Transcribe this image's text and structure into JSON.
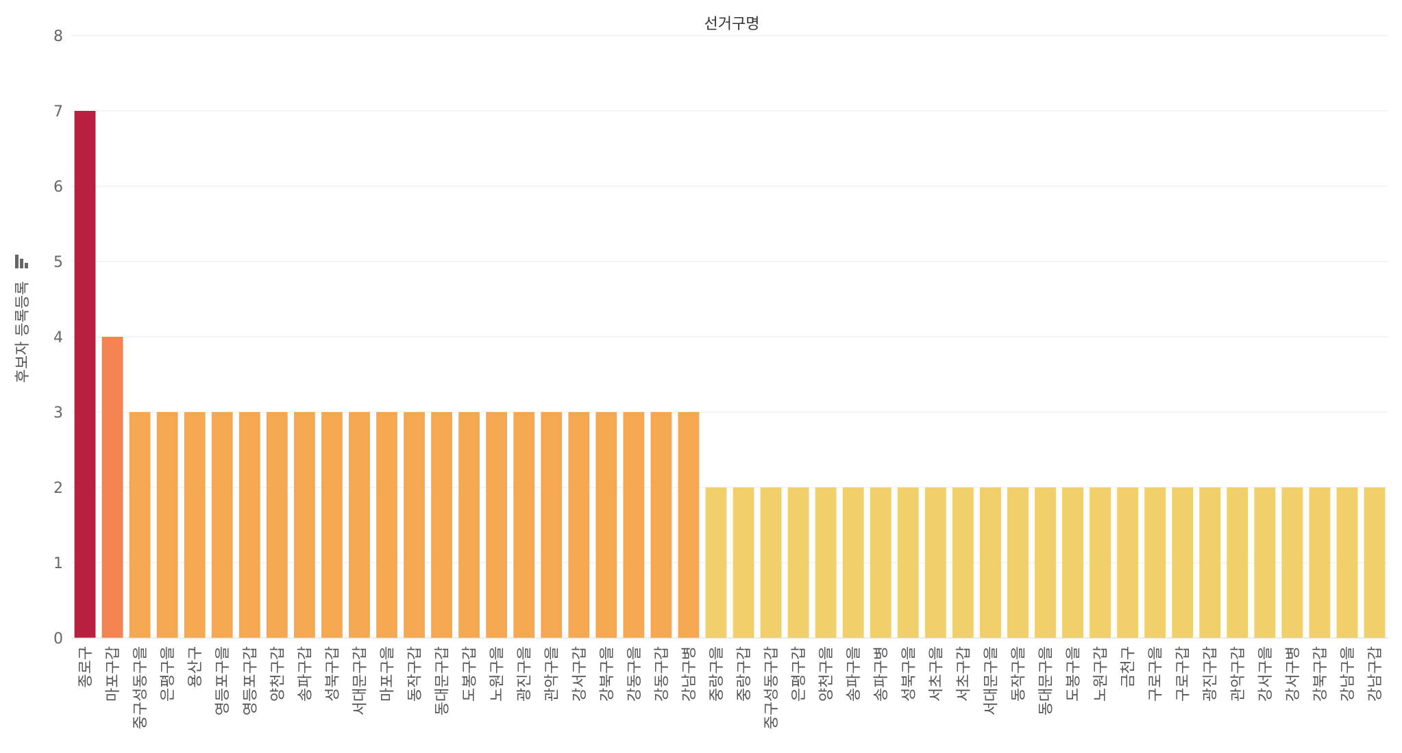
{
  "chart_data": {
    "type": "bar",
    "title": "선거구명",
    "xlabel": "",
    "ylabel": "후보자 등록등록",
    "ylim": [
      0,
      8
    ],
    "yticks": [
      0,
      1,
      2,
      3,
      4,
      5,
      6,
      7,
      8
    ],
    "grid": true,
    "categories": [
      "종로구",
      "마포구갑",
      "중구성동구을",
      "은평구을",
      "용산구",
      "영등포구을",
      "영등포구갑",
      "양천구갑",
      "송파구갑",
      "성북구갑",
      "서대문구갑",
      "마포구을",
      "동작구갑",
      "동대문구갑",
      "도봉구갑",
      "노원구을",
      "광진구을",
      "관악구을",
      "강서구갑",
      "강북구을",
      "강동구을",
      "강동구갑",
      "강남구병",
      "중랑구을",
      "중랑구갑",
      "중구성동구갑",
      "은평구갑",
      "양천구을",
      "송파구을",
      "송파구병",
      "성북구을",
      "서초구을",
      "서초구갑",
      "서대문구을",
      "동작구을",
      "동대문구을",
      "도봉구을",
      "노원구갑",
      "금천구",
      "구로구을",
      "구로구갑",
      "광진구갑",
      "관악구갑",
      "강서구을",
      "강서구병",
      "강북구갑",
      "강남구을",
      "강남구갑"
    ],
    "values": [
      7,
      4,
      3,
      3,
      3,
      3,
      3,
      3,
      3,
      3,
      3,
      3,
      3,
      3,
      3,
      3,
      3,
      3,
      3,
      3,
      3,
      3,
      3,
      2,
      2,
      2,
      2,
      2,
      2,
      2,
      2,
      2,
      2,
      2,
      2,
      2,
      2,
      2,
      2,
      2,
      2,
      2,
      2,
      2,
      2,
      2,
      2,
      2
    ],
    "colors": {
      "7": "#b9203f",
      "4": "#f38350",
      "3": "#f6a851",
      "2": "#f1d06b"
    },
    "sort_icon": "sort-descending-icon"
  }
}
